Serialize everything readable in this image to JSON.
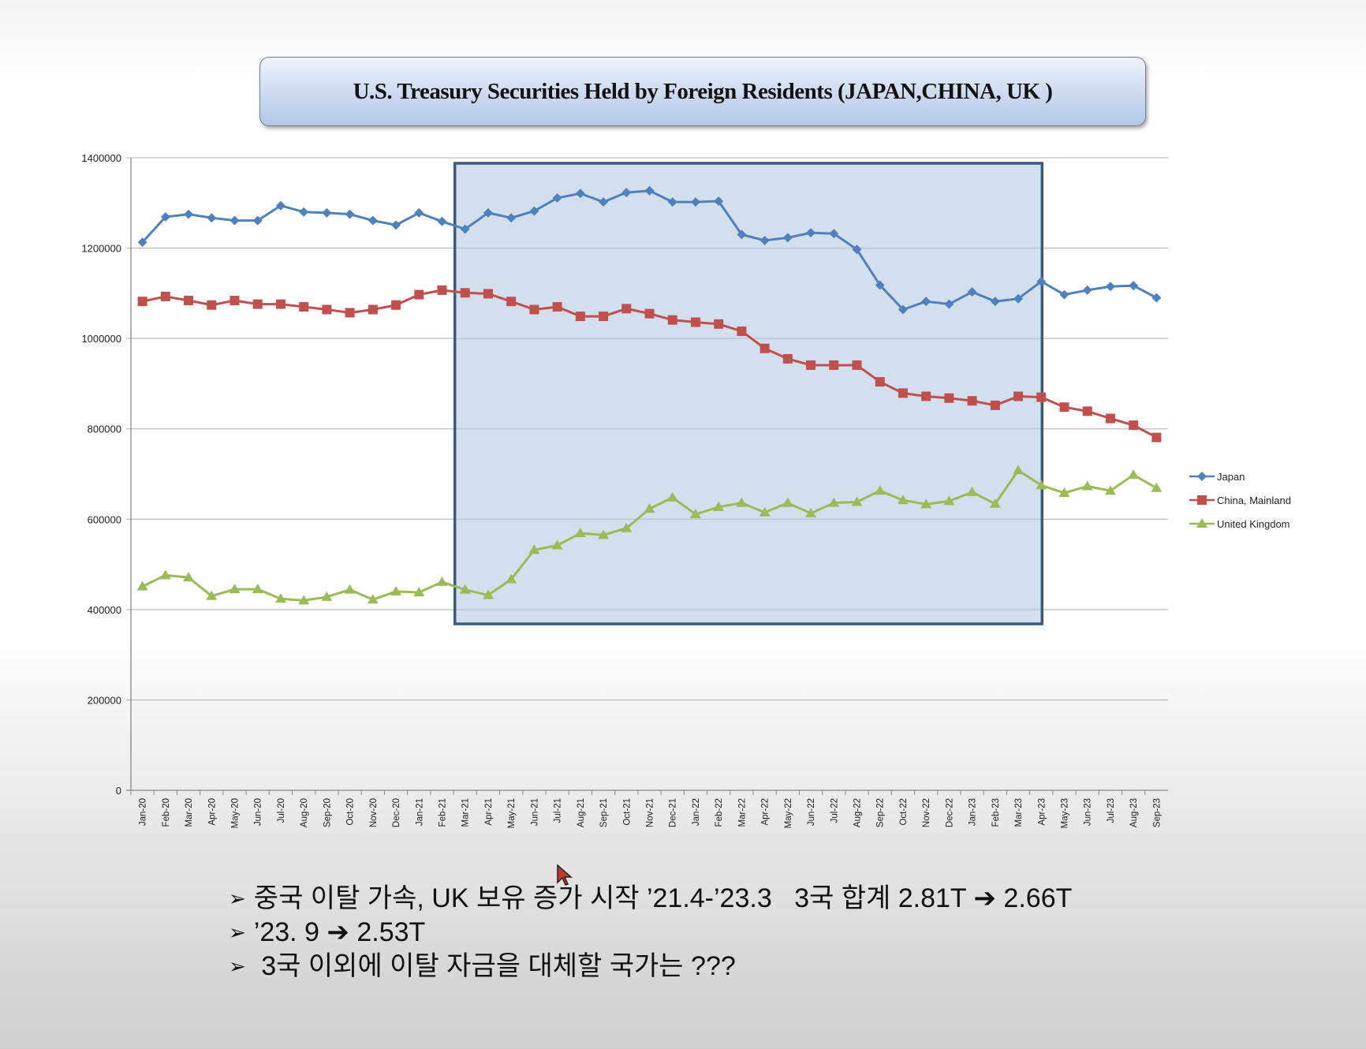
{
  "chart_data": {
    "type": "line",
    "title": "U.S. Treasury Securities Held by Foreign Residents (JAPAN,CHINA, UK )",
    "xlabel": "",
    "ylabel": "",
    "ylim": [
      0,
      1400000
    ],
    "yticks": [
      "0",
      "200000",
      "400000",
      "600000",
      "800000",
      "1000000",
      "1200000",
      "1400000"
    ],
    "grid": true,
    "legend_position": "right",
    "categories": [
      "Jan-20",
      "Feb-20",
      "Mar-20",
      "Apr-20",
      "May-20",
      "Jun-20",
      "Jul-20",
      "Aug-20",
      "Sep-20",
      "Oct-20",
      "Nov-20",
      "Dec-20",
      "Jan-21",
      "Feb-21",
      "Mar-21",
      "Apr-21",
      "May-21",
      "Jun-21",
      "Jul-21",
      "Aug-21",
      "Sep-21",
      "Oct-21",
      "Nov-21",
      "Dec-21",
      "Jan-22",
      "Feb-22",
      "Mar-22",
      "Apr-22",
      "May-22",
      "Jun-22",
      "Jul-22",
      "Aug-22",
      "Sep-22",
      "Oct-22",
      "Nov-22",
      "Dec-22",
      "Jan-23",
      "Feb-23",
      "Mar-23",
      "Apr-23",
      "May-23",
      "Jun-23",
      "Jul-23",
      "Aug-23",
      "Sep-23"
    ],
    "series": [
      {
        "name": "Japan",
        "color": "#4f81bd",
        "marker": "diamond",
        "values": [
          1213000,
          1269000,
          1275000,
          1267000,
          1261000,
          1261000,
          1294000,
          1280000,
          1278000,
          1275000,
          1261000,
          1251000,
          1278000,
          1259000,
          1242000,
          1278000,
          1267000,
          1282000,
          1311000,
          1321000,
          1302000,
          1323000,
          1327000,
          1302000,
          1302000,
          1304000,
          1230000,
          1217000,
          1223000,
          1234000,
          1232000,
          1197000,
          1118000,
          1064000,
          1082000,
          1076000,
          1103000,
          1082000,
          1088000,
          1126000,
          1097000,
          1107000,
          1115000,
          1117000,
          1090000
        ]
      },
      {
        "name": "China, Mainland",
        "color": "#c0504d",
        "marker": "square",
        "values": [
          1082000,
          1093000,
          1084000,
          1074000,
          1084000,
          1076000,
          1076000,
          1070000,
          1064000,
          1057000,
          1064000,
          1074000,
          1097000,
          1107000,
          1101000,
          1099000,
          1082000,
          1064000,
          1070000,
          1049000,
          1049000,
          1066000,
          1055000,
          1041000,
          1036000,
          1032000,
          1016000,
          978000,
          955000,
          941000,
          941000,
          941000,
          904000,
          879000,
          872000,
          868000,
          862000,
          852000,
          872000,
          870000,
          848000,
          839000,
          823000,
          808000,
          781000
        ]
      },
      {
        "name": "United Kingdom",
        "color": "#9bbb59",
        "marker": "triangle",
        "values": [
          451000,
          476000,
          471000,
          430000,
          445000,
          445000,
          424000,
          420000,
          428000,
          444000,
          422000,
          440000,
          438000,
          461000,
          444000,
          432000,
          467000,
          532000,
          542000,
          569000,
          565000,
          580000,
          623000,
          648000,
          611000,
          627000,
          636000,
          615000,
          636000,
          613000,
          636000,
          638000,
          663000,
          642000,
          633000,
          640000,
          660000,
          634000,
          708000,
          675000,
          658000,
          673000,
          663000,
          698000,
          669000
        ]
      }
    ],
    "highlight_range": [
      "Mar-21",
      "Apr-23"
    ]
  },
  "bullets": [
    "중국 이탈 가속, UK 보유 증가 시작 ’21.4-’23.3   3국 합계 2.81T ➔ 2.66T",
    "’23. 9 ➔ 2.53T",
    " 3국 이외에 이탈 자금을 대체할 국가는 ???"
  ],
  "bullet_glyph": "➢"
}
